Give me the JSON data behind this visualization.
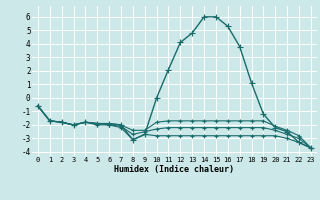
{
  "xlabel": "Humidex (Indice chaleur)",
  "bg_color": "#cce8e8",
  "grid_color": "#ffffff",
  "line_color": "#1a6b6b",
  "xlim": [
    -0.5,
    23.5
  ],
  "ylim": [
    -4.3,
    6.8
  ],
  "xticks": [
    0,
    1,
    2,
    3,
    4,
    5,
    6,
    7,
    8,
    9,
    10,
    11,
    12,
    13,
    14,
    15,
    16,
    17,
    18,
    19,
    20,
    21,
    22,
    23
  ],
  "yticks": [
    -4,
    -3,
    -2,
    -1,
    0,
    1,
    2,
    3,
    4,
    5,
    6
  ],
  "series": [
    {
      "x": [
        0,
        1,
        2,
        3,
        4,
        5,
        6,
        7,
        8,
        9,
        10,
        11,
        12,
        13,
        14,
        15,
        16,
        17,
        18,
        19,
        20,
        21,
        22,
        23
      ],
      "y": [
        -0.6,
        -1.7,
        -1.8,
        -2.0,
        -1.8,
        -1.9,
        -1.9,
        -2.0,
        -3.1,
        -2.7,
        0.0,
        2.1,
        4.1,
        4.8,
        6.0,
        6.0,
        5.3,
        3.8,
        1.1,
        -1.2,
        -2.2,
        -2.5,
        -3.3,
        -3.7
      ]
    },
    {
      "x": [
        0,
        1,
        2,
        3,
        4,
        5,
        6,
        7,
        8,
        9,
        10,
        11,
        12,
        13,
        14,
        15,
        16,
        17,
        18,
        19,
        20,
        21,
        22,
        23
      ],
      "y": [
        -0.6,
        -1.7,
        -1.8,
        -2.0,
        -1.8,
        -1.9,
        -1.9,
        -2.0,
        -2.4,
        -2.4,
        -1.8,
        -1.7,
        -1.7,
        -1.7,
        -1.7,
        -1.7,
        -1.7,
        -1.7,
        -1.7,
        -1.7,
        -2.1,
        -2.4,
        -2.8,
        -3.7
      ]
    },
    {
      "x": [
        0,
        1,
        2,
        3,
        4,
        5,
        6,
        7,
        8,
        9,
        10,
        11,
        12,
        13,
        14,
        15,
        16,
        17,
        18,
        19,
        20,
        21,
        22,
        23
      ],
      "y": [
        -0.6,
        -1.7,
        -1.8,
        -2.0,
        -1.8,
        -2.0,
        -2.0,
        -2.2,
        -3.1,
        -2.7,
        -2.8,
        -2.8,
        -2.8,
        -2.8,
        -2.8,
        -2.8,
        -2.8,
        -2.8,
        -2.8,
        -2.8,
        -2.8,
        -3.0,
        -3.3,
        -3.7
      ]
    },
    {
      "x": [
        0,
        1,
        2,
        3,
        4,
        5,
        6,
        7,
        8,
        9,
        10,
        11,
        12,
        13,
        14,
        15,
        16,
        17,
        18,
        19,
        20,
        21,
        22,
        23
      ],
      "y": [
        -0.6,
        -1.7,
        -1.8,
        -2.0,
        -1.8,
        -1.9,
        -2.0,
        -2.1,
        -2.7,
        -2.5,
        -2.3,
        -2.2,
        -2.2,
        -2.2,
        -2.2,
        -2.2,
        -2.2,
        -2.2,
        -2.2,
        -2.2,
        -2.4,
        -2.7,
        -3.0,
        -3.7
      ]
    }
  ]
}
